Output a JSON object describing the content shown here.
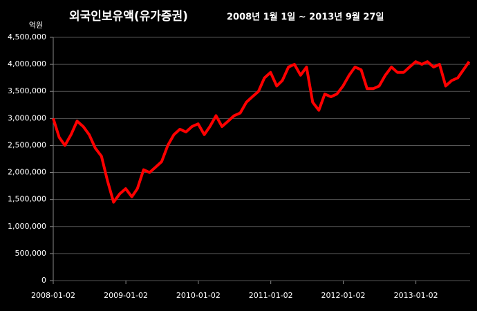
{
  "chart_data": {
    "type": "line",
    "title": "외국인보유액(유가증권)",
    "subtitle": "2008년 1월 1일 ~ 2013년 9월 27일",
    "y_label": "억원",
    "x": [
      "2008-01-02",
      "2008-02-01",
      "2008-03-01",
      "2008-04-01",
      "2008-05-01",
      "2008-06-01",
      "2008-07-01",
      "2008-08-01",
      "2008-09-01",
      "2008-10-01",
      "2008-11-01",
      "2008-12-01",
      "2009-01-01",
      "2009-02-01",
      "2009-03-01",
      "2009-04-01",
      "2009-05-01",
      "2009-06-01",
      "2009-07-01",
      "2009-08-01",
      "2009-09-01",
      "2009-10-01",
      "2009-11-01",
      "2009-12-01",
      "2010-01-01",
      "2010-02-01",
      "2010-03-01",
      "2010-04-01",
      "2010-05-01",
      "2010-06-01",
      "2010-07-01",
      "2010-08-01",
      "2010-09-01",
      "2010-10-01",
      "2010-11-01",
      "2010-12-01",
      "2011-01-01",
      "2011-02-01",
      "2011-03-01",
      "2011-04-01",
      "2011-05-01",
      "2011-06-01",
      "2011-07-01",
      "2011-08-01",
      "2011-09-01",
      "2011-10-01",
      "2011-11-01",
      "2011-12-01",
      "2012-01-01",
      "2012-02-01",
      "2012-03-01",
      "2012-04-01",
      "2012-05-01",
      "2012-06-01",
      "2012-07-01",
      "2012-08-01",
      "2012-09-01",
      "2012-10-01",
      "2012-11-01",
      "2012-12-01",
      "2013-01-01",
      "2013-02-01",
      "2013-03-01",
      "2013-04-01",
      "2013-05-01",
      "2013-06-01",
      "2013-07-01",
      "2013-08-01",
      "2013-09-27"
    ],
    "series": [
      {
        "name": "외국인보유액",
        "color": "#ff0000",
        "values": [
          3000000,
          2650000,
          2500000,
          2700000,
          2950000,
          2850000,
          2700000,
          2450000,
          2300000,
          1850000,
          1450000,
          1600000,
          1700000,
          1550000,
          1700000,
          2050000,
          2000000,
          2100000,
          2200000,
          2500000,
          2700000,
          2800000,
          2750000,
          2850000,
          2900000,
          2700000,
          2850000,
          3050000,
          2850000,
          2950000,
          3050000,
          3100000,
          3300000,
          3400000,
          3500000,
          3750000,
          3850000,
          3600000,
          3700000,
          3950000,
          4000000,
          3800000,
          3950000,
          3300000,
          3150000,
          3450000,
          3400000,
          3450000,
          3600000,
          3800000,
          3950000,
          3900000,
          3550000,
          3550000,
          3600000,
          3800000,
          3950000,
          3850000,
          3850000,
          3950000,
          4050000,
          4000000,
          4050000,
          3950000,
          4000000,
          3600000,
          3700000,
          3750000,
          4050000
        ]
      }
    ],
    "xlim": [
      "2008-01-02",
      "2013-10-02"
    ],
    "xticks": [
      "2008-01-02",
      "2009-01-02",
      "2010-01-02",
      "2011-01-02",
      "2012-01-02",
      "2013-01-02"
    ],
    "ylim": [
      0,
      4500000
    ],
    "yticks": [
      0,
      {
        "value": 500000,
        "label": "500,000"
      },
      {
        "value": 1000000,
        "label": "1,000,000"
      },
      {
        "value": 1500000,
        "label": "1,500,000"
      },
      {
        "value": 2000000,
        "label": "2,000,000"
      },
      {
        "value": 2500000,
        "label": "2,500,000"
      },
      {
        "value": 3000000,
        "label": "3,000,000"
      },
      {
        "value": 3500000,
        "label": "3,500,000"
      },
      {
        "value": 4000000,
        "label": "4,000,000"
      },
      {
        "value": 4500000,
        "label": "4,500,000"
      }
    ],
    "grid": true
  }
}
